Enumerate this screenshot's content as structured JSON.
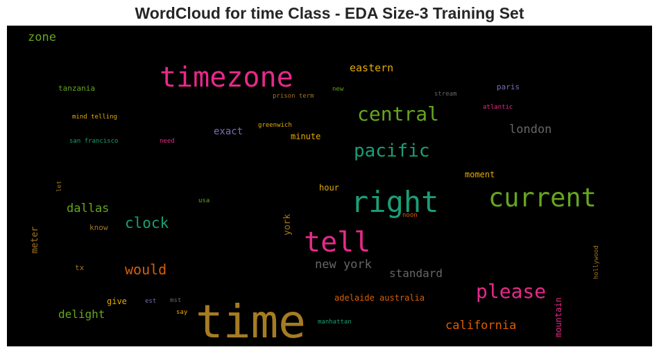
{
  "title": "WordCloud for time Class - EDA Size-3 Training Set",
  "words": [
    {
      "text": "time",
      "color": "#a67c23"
    },
    {
      "text": "timezone",
      "color": "#e7298a"
    },
    {
      "text": "right",
      "color": "#1b9e77"
    },
    {
      "text": "current",
      "color": "#66a61e"
    },
    {
      "text": "tell",
      "color": "#e7298a"
    },
    {
      "text": "central",
      "color": "#66a61e"
    },
    {
      "text": "pacific",
      "color": "#1b9e77"
    },
    {
      "text": "please",
      "color": "#e7298a"
    },
    {
      "text": "clock",
      "color": "#1b9e77"
    },
    {
      "text": "would",
      "color": "#d95f02"
    },
    {
      "text": "new york",
      "color": "#666666"
    },
    {
      "text": "california",
      "color": "#d95f02"
    },
    {
      "text": "london",
      "color": "#666666"
    },
    {
      "text": "dallas",
      "color": "#66a61e"
    },
    {
      "text": "standard",
      "color": "#666666"
    },
    {
      "text": "delight",
      "color": "#66a61e"
    },
    {
      "text": "zone",
      "color": "#66a61e"
    },
    {
      "text": "eastern",
      "color": "#e6ab02"
    },
    {
      "text": "exact",
      "color": "#7570b3"
    },
    {
      "text": "meter",
      "color": "#a6761d"
    },
    {
      "text": "york",
      "color": "#a6761d"
    },
    {
      "text": "mountain",
      "color": "#e7298a"
    },
    {
      "text": "adelaide australia",
      "color": "#d95f02"
    },
    {
      "text": "minute",
      "color": "#e6ab02"
    },
    {
      "text": "moment",
      "color": "#e6ab02"
    },
    {
      "text": "hour",
      "color": "#e6ab02"
    },
    {
      "text": "give",
      "color": "#e6ab02"
    },
    {
      "text": "know",
      "color": "#a6761d"
    },
    {
      "text": "tanzania",
      "color": "#66a61e"
    },
    {
      "text": "paris",
      "color": "#7570b3"
    },
    {
      "text": "tx",
      "color": "#a6761d"
    },
    {
      "text": "mind telling",
      "color": "#e6ab02"
    },
    {
      "text": "san francisco",
      "color": "#1b9e77"
    },
    {
      "text": "need",
      "color": "#e7298a"
    },
    {
      "text": "greenwich",
      "color": "#e6ab02"
    },
    {
      "text": "prison term",
      "color": "#a6761d"
    },
    {
      "text": "new",
      "color": "#66a61e"
    },
    {
      "text": "stream",
      "color": "#666666"
    },
    {
      "text": "atlantic",
      "color": "#e7298a"
    },
    {
      "text": "let",
      "color": "#a6761d"
    },
    {
      "text": "usa",
      "color": "#66a61e"
    },
    {
      "text": "noon",
      "color": "#d95f02"
    },
    {
      "text": "hollywood",
      "color": "#a6761d"
    },
    {
      "text": "est",
      "color": "#7570b3"
    },
    {
      "text": "mst",
      "color": "#666666"
    },
    {
      "text": "say",
      "color": "#e6ab02"
    },
    {
      "text": "manhattan",
      "color": "#1b9e77"
    }
  ]
}
